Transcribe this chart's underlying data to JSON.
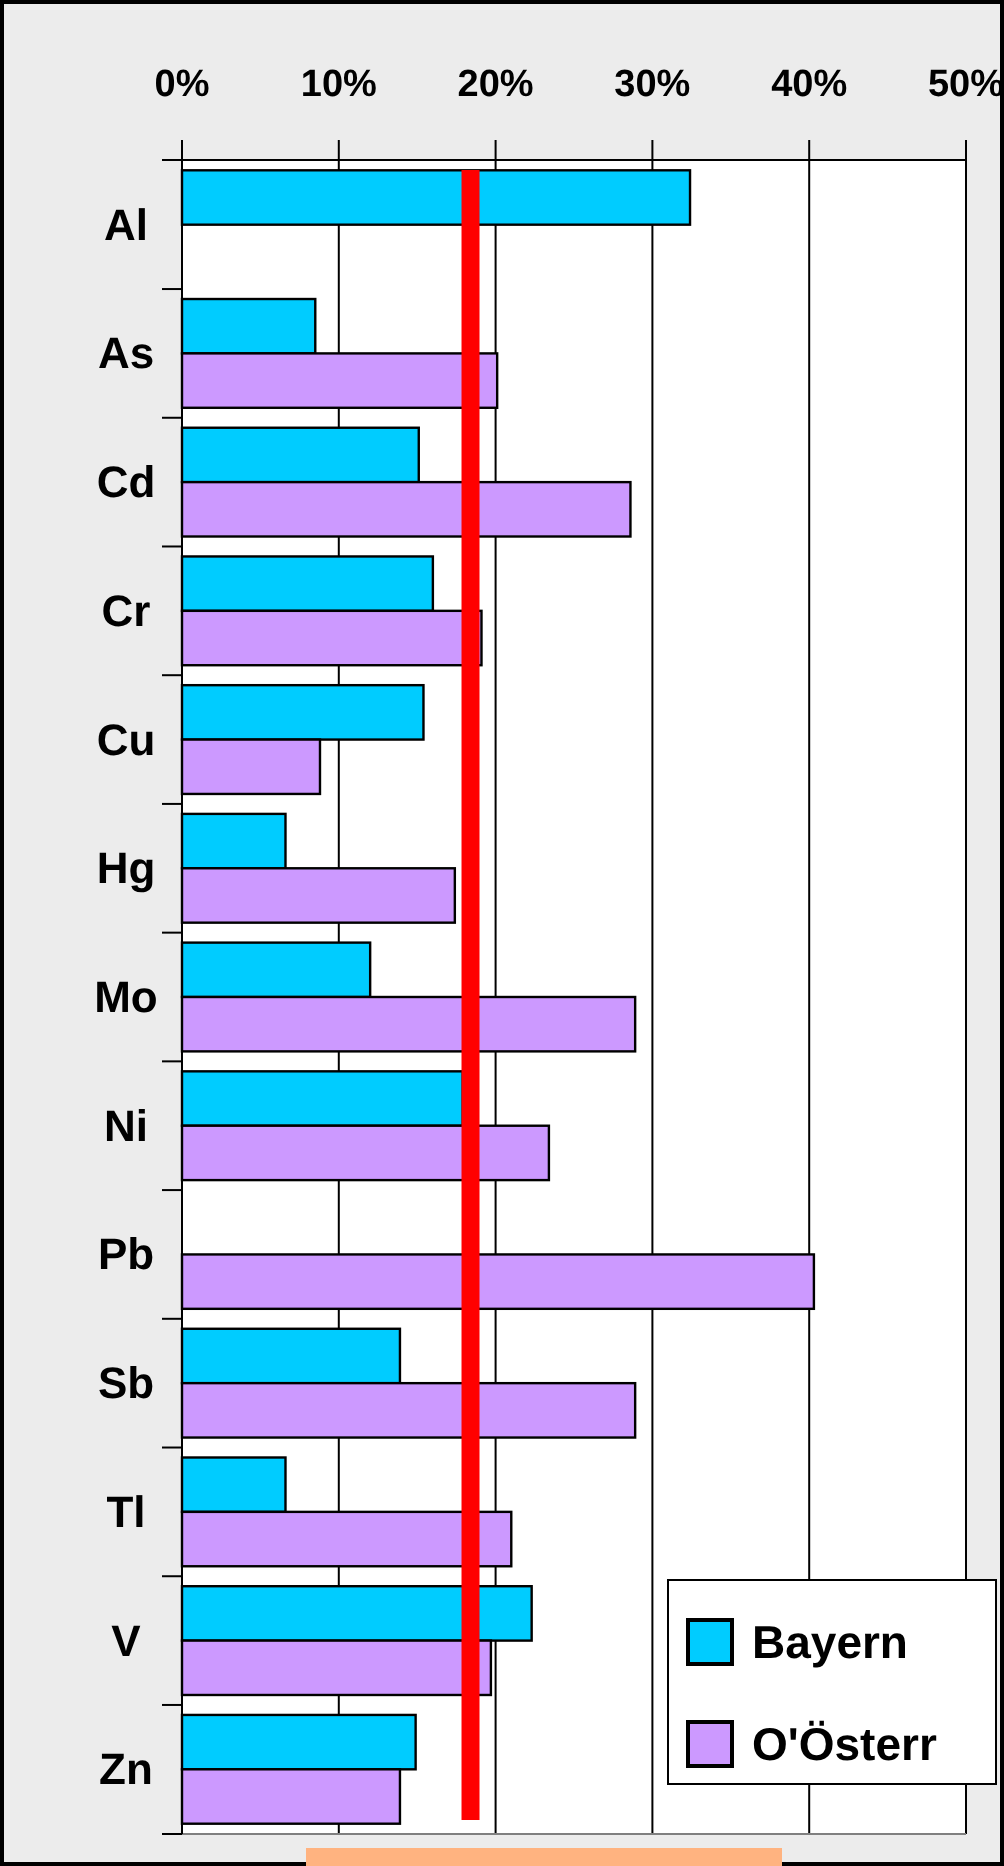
{
  "chart_data": {
    "type": "bar",
    "orientation": "horizontal",
    "categories": [
      "Al",
      "As",
      "Cd",
      "Cr",
      "Cu",
      "Hg",
      "Mo",
      "Ni",
      "Pb",
      "Sb",
      "Tl",
      "V",
      "Zn"
    ],
    "series": [
      {
        "name": "Bayern",
        "color": "#00ccff",
        "values": [
          32.4,
          8.5,
          15.1,
          16.0,
          15.4,
          6.6,
          12.0,
          17.9,
          null,
          13.9,
          6.6,
          22.3,
          14.9
        ]
      },
      {
        "name": "O'Österr",
        "color": "#cc99ff",
        "values": [
          null,
          20.1,
          28.6,
          19.1,
          8.8,
          17.4,
          28.9,
          23.4,
          40.3,
          28.9,
          21.0,
          19.7,
          13.9
        ]
      }
    ],
    "xlim": [
      0,
      50
    ],
    "xticks": [
      {
        "value": 0,
        "label": "0%"
      },
      {
        "value": 10,
        "label": "10%"
      },
      {
        "value": 20,
        "label": "20%"
      },
      {
        "value": 30,
        "label": "30%"
      },
      {
        "value": 40,
        "label": "40%"
      },
      {
        "value": 50,
        "label": "50%"
      }
    ],
    "grid": "x",
    "legend": "bottom right",
    "ref_lines": [
      {
        "axis": "x",
        "value": 18.4,
        "color": "#ff0000"
      }
    ]
  }
}
